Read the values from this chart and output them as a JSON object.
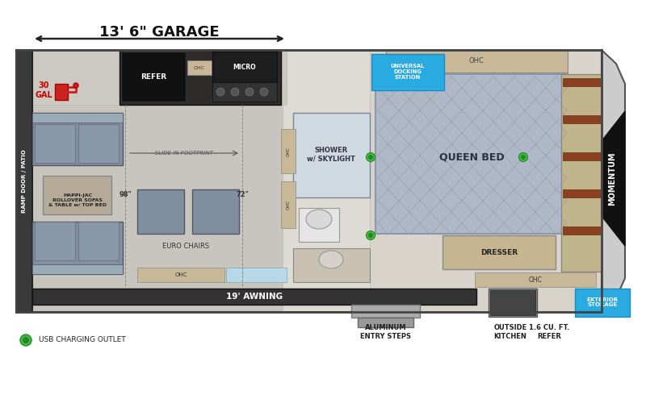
{
  "bg_color": "#ffffff",
  "wall_color": "#555555",
  "floor_light": "#d4cfc8",
  "floor_garage": "#c8c5be",
  "floor_bedroom": "#d8d4cc",
  "dark_appliance": "#222222",
  "ohc_color": "#c8b898",
  "shower_color": "#d0d8e0",
  "awning_color": "#333333",
  "exterior_storage_bg": "#29abe2",
  "universal_docking_bg": "#29abe2",
  "usb_green": "#44bb44",
  "sofa_color": "#8090a0",
  "sofa_back": "#9aabb8",
  "bed_color": "#b0b8c8",
  "bed_line": "#9099a8",
  "ramp_color": "#444444",
  "nose_color": "#cccccc",
  "nose_dark": "#111111",
  "title_garage": "13' 6\" GARAGE",
  "label_30gal": "30\nGAL",
  "label_refer": "REFER",
  "label_ohc": "OHC",
  "label_micro": "MICRO",
  "label_happi": "HAPPI-JAC\nROLLOVER SOFAS\n& TABLE w/ TOP BED",
  "label_98": "98\"",
  "label_72": "72\"",
  "label_euro": "EURO CHAIRS",
  "label_slide": "- SLIDE IN FOOTPRINT -",
  "label_shower": "SHOWER\nw/ SKYLIGHT",
  "label_queen": "QUEEN BED",
  "label_dresser": "DRESSER",
  "label_ramp": "RAMP DOOR / PATIO",
  "label_awning": "19' AWNING",
  "label_alum": "ALUMINUM\nENTRY STEPS",
  "label_outside": "OUTSIDE\nKITCHEN",
  "label_refer2": "1.6 CU. FT.\nREFER",
  "label_ext_storage": "EXTERIOR\nSTORAGE",
  "label_usb": "USB CHARGING OUTLET",
  "label_universal": "UNIVERSAL\nDOCKING\nSTATION",
  "momentum_text": "MOMENTUM"
}
